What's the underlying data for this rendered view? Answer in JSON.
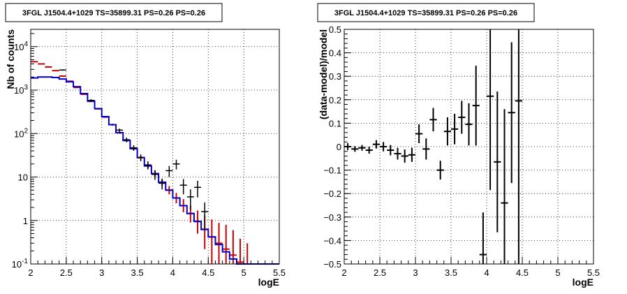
{
  "chart_data": [
    {
      "type": "step-histogram",
      "title": "3FGL J1504.4+1029 TS=35899.31 PS=0.26 PS=0.26",
      "xlabel": "logE",
      "ylabel": "Nb of counts",
      "xlim": [
        2,
        5.5
      ],
      "ylim": [
        0.1,
        25000
      ],
      "yscale": "log",
      "grid": true,
      "x_ticks": [
        "2",
        "2.5",
        "3",
        "3.5",
        "4",
        "4.5",
        "5",
        "5.5"
      ],
      "y_ticks": [
        "10^-1",
        "1",
        "10",
        "10^2",
        "10^3",
        "10^4"
      ],
      "bin_edges": [
        2.0,
        2.1,
        2.2,
        2.3,
        2.4,
        2.5,
        2.6,
        2.7,
        2.8,
        2.9,
        3.0,
        3.1,
        3.2,
        3.3,
        3.4,
        3.5,
        3.6,
        3.7,
        3.8,
        3.9,
        4.0,
        4.1,
        4.2,
        4.3,
        4.4,
        4.5,
        4.6,
        4.7,
        4.8,
        4.9,
        5.0,
        5.1,
        5.2,
        5.3,
        5.4,
        5.5
      ],
      "series": [
        {
          "color": "#cc0000",
          "style": "errorbar-steps",
          "values": [
            4500,
            4000,
            3400,
            2800,
            2100,
            1600,
            1150,
            800,
            550,
            370,
            240,
            160,
            105,
            70,
            45,
            28,
            18,
            12,
            7.5,
            5,
            3.3,
            2.2,
            1.45,
            0.95,
            0.63,
            0.42,
            0.3,
            0.22,
            0.16,
            0.11,
            0.1,
            0.1,
            0.1,
            0.1,
            0.1
          ],
          "err_low": [
            4400,
            3900,
            3300,
            2720,
            2040,
            1555,
            1115,
            775,
            530,
            355,
            230,
            152,
            99,
            65,
            41.5,
            25.5,
            16,
            10.5,
            6.3,
            4,
            2.5,
            1.55,
            0.9,
            0.5,
            0.22,
            0.1,
            0.1,
            0.1,
            0.1,
            0.1,
            0.1,
            0.1,
            0.1,
            0.1,
            0.1
          ],
          "err_high": [
            4600,
            4100,
            3500,
            2880,
            2160,
            1645,
            1185,
            825,
            570,
            385,
            250,
            168,
            111,
            75,
            49,
            31,
            20.5,
            14,
            8.8,
            6.2,
            4.3,
            3.1,
            2.2,
            1.7,
            1.3,
            1.05,
            0.88,
            0.8,
            0.6,
            0.38,
            0.3,
            0.1,
            0.1,
            0.1,
            0.1
          ]
        },
        {
          "color": "#0000cc",
          "style": "steps",
          "values": [
            1900,
            2000,
            2000,
            1950,
            1800,
            1550,
            1200,
            830,
            560,
            375,
            245,
            160,
            105,
            69,
            45,
            28,
            18,
            12,
            7.6,
            5,
            3.3,
            2.2,
            1.45,
            0.95,
            0.62,
            0.42,
            0.28,
            0.19,
            0.13,
            0.1,
            0.1,
            0.1,
            0.1,
            0.1,
            0.1
          ]
        },
        {
          "color": "#000000",
          "style": "data-crosses",
          "x": [
            2.45,
            2.85,
            3.25,
            3.35,
            3.45,
            3.55,
            3.65,
            3.75,
            3.85,
            3.95,
            4.05,
            4.15,
            4.25,
            4.35,
            4.45
          ],
          "y": [
            2900,
            580,
            120,
            72,
            47,
            28,
            19,
            11.5,
            7.2,
            14,
            20,
            6.5,
            3.5,
            5.8,
            1.6
          ],
          "y_low": [
            2800,
            540,
            110,
            63,
            40,
            23,
            15,
            8.6,
            5.2,
            10,
            15,
            4,
            1.8,
            3.4,
            0.6
          ],
          "y_high": [
            3000,
            620,
            130,
            81,
            54,
            33,
            23,
            14.4,
            9.2,
            18,
            25,
            9,
            5.2,
            8.2,
            2.6
          ]
        }
      ]
    },
    {
      "type": "scatter-errorbars",
      "title": "3FGL J1504.4+1029 TS=35899.31 PS=0.26 PS=0.26",
      "xlabel": "logE",
      "ylabel": "(data-model)/model",
      "xlim": [
        2,
        5.5
      ],
      "ylim": [
        -0.5,
        0.5
      ],
      "grid": true,
      "x_ticks": [
        "2",
        "2.5",
        "3",
        "3.5",
        "4",
        "4.5",
        "5",
        "5.5"
      ],
      "y_ticks": [
        "−0.5",
        "−0.4",
        "−0.3",
        "−0.2",
        "−0.1",
        "0",
        "0.1",
        "0.2",
        "0.3",
        "0.4",
        "0.5"
      ],
      "points": {
        "x": [
          2.05,
          2.15,
          2.25,
          2.35,
          2.45,
          2.55,
          2.65,
          2.75,
          2.85,
          2.95,
          3.05,
          3.15,
          3.25,
          3.35,
          3.45,
          3.55,
          3.65,
          3.75,
          3.85,
          3.95,
          4.05,
          4.15,
          4.25,
          4.35,
          4.45
        ],
        "y": [
          0.0,
          -0.01,
          -0.005,
          -0.015,
          0.01,
          0.0,
          -0.015,
          -0.03,
          -0.04,
          -0.035,
          0.055,
          -0.01,
          0.115,
          -0.1,
          0.065,
          0.075,
          0.125,
          0.095,
          0.175,
          -0.46,
          0.215,
          -0.065,
          -0.24,
          0.145,
          0.195
        ],
        "err": [
          0.015,
          0.012,
          0.012,
          0.015,
          0.018,
          0.02,
          0.022,
          0.025,
          0.028,
          0.03,
          0.04,
          0.045,
          0.05,
          0.04,
          0.06,
          0.065,
          0.07,
          0.09,
          0.17,
          0.18,
          0.4,
          0.3,
          0.4,
          0.3,
          0.72
        ]
      }
    }
  ]
}
